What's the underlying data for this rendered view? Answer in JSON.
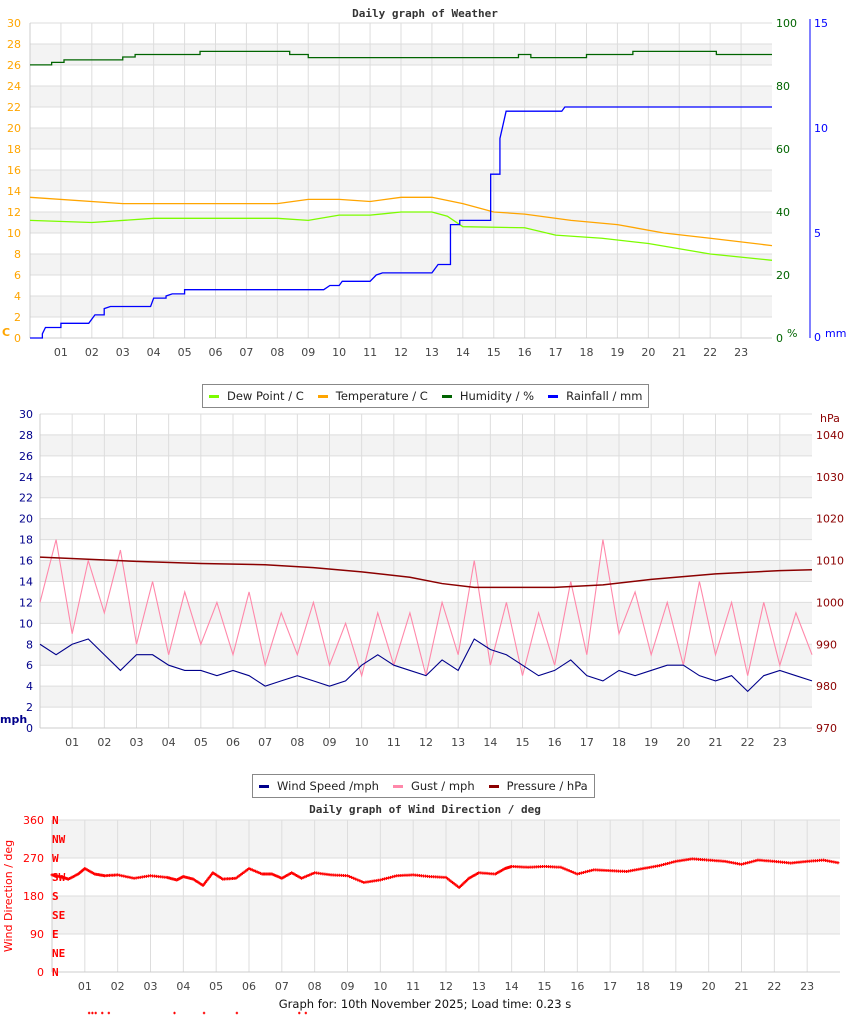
{
  "chart_data": [
    {
      "type": "line",
      "title": "Daily graph of Weather",
      "x_ticks": [
        "01",
        "02",
        "03",
        "04",
        "05",
        "06",
        "07",
        "08",
        "09",
        "10",
        "11",
        "12",
        "13",
        "14",
        "15",
        "16",
        "17",
        "18",
        "19",
        "20",
        "21",
        "22",
        "23"
      ],
      "xlim_hours": [
        0,
        24
      ],
      "axes": {
        "left": {
          "unit": "C",
          "ylim": [
            0,
            30
          ],
          "ticks": [
            0,
            2,
            4,
            6,
            8,
            10,
            12,
            14,
            16,
            18,
            20,
            22,
            24,
            26,
            28,
            30
          ],
          "color": "#ffa500"
        },
        "right1": {
          "unit": "%",
          "ylim": [
            0,
            100
          ],
          "ticks": [
            0,
            20,
            40,
            60,
            80,
            100
          ],
          "color": "#006400"
        },
        "right2": {
          "unit": "mm",
          "ylim": [
            0,
            15
          ],
          "ticks": [
            0,
            5,
            10,
            15
          ],
          "color": "#0000ff"
        }
      },
      "grid": true,
      "legend_placement": "bottom",
      "series": [
        {
          "name": "Dew Point / C",
          "color": "#7cfc00",
          "axis": "left",
          "points": [
            [
              0,
              11.2
            ],
            [
              2,
              11
            ],
            [
              4,
              11.4
            ],
            [
              8,
              11.4
            ],
            [
              9,
              11.2
            ],
            [
              10,
              11.7
            ],
            [
              11,
              11.7
            ],
            [
              12,
              12
            ],
            [
              13,
              12
            ],
            [
              13.5,
              11.6
            ],
            [
              14,
              10.6
            ],
            [
              16,
              10.5
            ],
            [
              17,
              9.8
            ],
            [
              18.5,
              9.5
            ],
            [
              20,
              9
            ],
            [
              21,
              8.5
            ],
            [
              22,
              8
            ],
            [
              24,
              7.4
            ]
          ]
        },
        {
          "name": "Temperature / C",
          "color": "#ffa500",
          "axis": "left",
          "points": [
            [
              0,
              13.4
            ],
            [
              3,
              12.8
            ],
            [
              8,
              12.8
            ],
            [
              9,
              13.2
            ],
            [
              10,
              13.2
            ],
            [
              11,
              13
            ],
            [
              12,
              13.4
            ],
            [
              13,
              13.4
            ],
            [
              14,
              12.8
            ],
            [
              15,
              12
            ],
            [
              16,
              11.8
            ],
            [
              17.5,
              11.2
            ],
            [
              19,
              10.8
            ],
            [
              20.5,
              10
            ],
            [
              22,
              9.5
            ],
            [
              24,
              8.8
            ]
          ]
        },
        {
          "name": "Humidity / %",
          "color": "#006400",
          "axis": "right1",
          "step": true,
          "points": [
            [
              0,
              86.7
            ],
            [
              0.7,
              87.5
            ],
            [
              1.1,
              88.3
            ],
            [
              3,
              89.2
            ],
            [
              3.4,
              90
            ],
            [
              5.3,
              90
            ],
            [
              5.5,
              91
            ],
            [
              8,
              91
            ],
            [
              8.4,
              90
            ],
            [
              15.8,
              90
            ],
            [
              16.2,
              89
            ],
            [
              17.5,
              89
            ],
            [
              18,
              90
            ],
            [
              19.2,
              90
            ],
            [
              19.5,
              91
            ],
            [
              21,
              91
            ],
            [
              22,
              91
            ],
            [
              22.2,
              90
            ],
            [
              24,
              90
            ],
            [
              9,
              89
            ],
            [
              10,
              89
            ]
          ]
        },
        {
          "name": "Rainfall / mm",
          "color": "#0000ff",
          "axis": "right2",
          "points": [
            [
              0,
              0
            ],
            [
              0.4,
              0.2
            ],
            [
              0.5,
              0.5
            ],
            [
              1,
              0.7
            ],
            [
              1.9,
              0.7
            ],
            [
              2.1,
              1.1
            ],
            [
              2.4,
              1.4
            ],
            [
              2.6,
              1.5
            ],
            [
              3.9,
              1.5
            ],
            [
              4,
              1.9
            ],
            [
              4.4,
              2
            ],
            [
              4.6,
              2.1
            ],
            [
              5,
              2.3
            ],
            [
              9.5,
              2.3
            ],
            [
              9.7,
              2.5
            ],
            [
              10,
              2.5
            ],
            [
              10.1,
              2.7
            ],
            [
              11,
              2.7
            ],
            [
              11.2,
              3
            ],
            [
              11.4,
              3.1
            ],
            [
              13,
              3.1
            ],
            [
              13.2,
              3.5
            ],
            [
              13.6,
              5.4
            ],
            [
              13.9,
              5.6
            ],
            [
              14.5,
              5.6
            ],
            [
              14.9,
              7.8
            ],
            [
              15.2,
              9.5
            ],
            [
              15.4,
              10.8
            ],
            [
              17.2,
              10.8
            ],
            [
              17.3,
              11
            ],
            [
              24,
              11
            ]
          ]
        }
      ]
    },
    {
      "type": "line",
      "title": "",
      "x_ticks": [
        "01",
        "02",
        "03",
        "04",
        "05",
        "06",
        "07",
        "08",
        "09",
        "10",
        "11",
        "12",
        "13",
        "14",
        "15",
        "16",
        "17",
        "18",
        "19",
        "20",
        "21",
        "22",
        "23"
      ],
      "xlim_hours": [
        0,
        24
      ],
      "axes": {
        "left": {
          "unit": "mph",
          "ylim": [
            0,
            30
          ],
          "ticks": [
            0,
            2,
            4,
            6,
            8,
            10,
            12,
            14,
            16,
            18,
            20,
            22,
            24,
            26,
            28,
            30
          ],
          "color": "#00008b"
        },
        "right": {
          "unit": "hPa",
          "ylim": [
            970,
            1045
          ],
          "ticks": [
            970,
            980,
            990,
            1000,
            1010,
            1020,
            1030,
            1040
          ],
          "color": "#8b0000"
        }
      },
      "grid": true,
      "legend_placement": "bottom",
      "hours": [
        0,
        0.5,
        1,
        1.5,
        2,
        2.5,
        3,
        3.5,
        4,
        4.5,
        5,
        5.5,
        6,
        6.5,
        7,
        7.5,
        8,
        8.5,
        9,
        9.5,
        10,
        10.5,
        11,
        11.5,
        12,
        12.5,
        13,
        13.5,
        14,
        14.5,
        15,
        15.5,
        16,
        16.5,
        17,
        17.5,
        18,
        18.5,
        19,
        19.5,
        20,
        20.5,
        21,
        21.5,
        22,
        22.5,
        23,
        23.5,
        24
      ],
      "series": [
        {
          "name": "Gust / mph",
          "color": "#ff88aa",
          "axis": "left",
          "values": [
            12,
            18,
            9,
            16,
            11,
            17,
            8,
            14,
            7,
            13,
            8,
            12,
            7,
            13,
            6,
            11,
            7,
            12,
            6,
            10,
            5,
            11,
            6,
            11,
            5,
            12,
            7,
            16,
            6,
            12,
            5,
            11,
            6,
            14,
            7,
            18,
            9,
            13,
            7,
            12,
            6,
            14,
            7,
            12,
            5,
            12,
            6,
            11,
            7
          ]
        },
        {
          "name": "Wind Speed /mph",
          "color": "#00008b",
          "axis": "left",
          "values": [
            8,
            7,
            8,
            8.5,
            7,
            5.5,
            7,
            7,
            6,
            5.5,
            5.5,
            5,
            5.5,
            5,
            4,
            4.5,
            5,
            4.5,
            4,
            4.5,
            6,
            7,
            6,
            5.5,
            5,
            6.5,
            5.5,
            8.5,
            7.5,
            7,
            6,
            5,
            5.5,
            6.5,
            5,
            4.5,
            5.5,
            5,
            5.5,
            6,
            6,
            5,
            4.5,
            5,
            3.5,
            5,
            5.5,
            5,
            4.5
          ]
        },
        {
          "name": "Pressure / hPa",
          "color": "#8b0000",
          "axis": "right",
          "points": [
            [
              0,
              1010.8
            ],
            [
              3,
              1009.8
            ],
            [
              5,
              1009.3
            ],
            [
              7,
              1009
            ],
            [
              8.5,
              1008.3
            ],
            [
              10,
              1007.3
            ],
            [
              11.5,
              1006
            ],
            [
              12.5,
              1004.5
            ],
            [
              13.5,
              1003.6
            ],
            [
              16,
              1003.6
            ],
            [
              17.5,
              1004.2
            ],
            [
              19,
              1005.5
            ],
            [
              21,
              1006.8
            ],
            [
              23,
              1007.6
            ],
            [
              24,
              1007.8
            ]
          ]
        }
      ]
    },
    {
      "type": "scatter",
      "title": "Daily graph of Wind Direction / deg",
      "ylabel": "Wind Direction / deg",
      "x_ticks": [
        "01",
        "02",
        "03",
        "04",
        "05",
        "06",
        "07",
        "08",
        "09",
        "10",
        "11",
        "12",
        "13",
        "14",
        "15",
        "16",
        "17",
        "18",
        "19",
        "20",
        "21",
        "22",
        "23"
      ],
      "xlim_hours": [
        0,
        24
      ],
      "ylim": [
        0,
        360
      ],
      "y_ticks": [
        0,
        90,
        180,
        270,
        360
      ],
      "compass_labels": [
        "N",
        "NE",
        "E",
        "SE",
        "S",
        "SW",
        "W",
        "NW",
        "N"
      ],
      "grid": true,
      "color": "#ff0000",
      "points": [
        [
          0,
          230
        ],
        [
          0.3,
          225
        ],
        [
          0.5,
          220
        ],
        [
          0.8,
          232
        ],
        [
          1,
          245
        ],
        [
          1.3,
          232
        ],
        [
          1.6,
          228
        ],
        [
          2,
          230
        ],
        [
          2.5,
          222
        ],
        [
          3,
          228
        ],
        [
          3.5,
          224
        ],
        [
          3.8,
          218
        ],
        [
          4,
          226
        ],
        [
          4.3,
          220
        ],
        [
          4.6,
          205
        ],
        [
          4.9,
          235
        ],
        [
          5.2,
          220
        ],
        [
          5.6,
          222
        ],
        [
          6,
          245
        ],
        [
          6.4,
          232
        ],
        [
          6.7,
          232
        ],
        [
          7,
          222
        ],
        [
          7.3,
          235
        ],
        [
          7.6,
          222
        ],
        [
          8,
          235
        ],
        [
          8.5,
          230
        ],
        [
          9,
          228
        ],
        [
          9.5,
          212
        ],
        [
          10,
          218
        ],
        [
          10.5,
          228
        ],
        [
          11,
          230
        ],
        [
          11.5,
          226
        ],
        [
          12,
          224
        ],
        [
          12.4,
          200
        ],
        [
          12.7,
          222
        ],
        [
          13,
          235
        ],
        [
          13.5,
          232
        ],
        [
          13.8,
          245
        ],
        [
          14,
          250
        ],
        [
          14.5,
          248
        ],
        [
          15,
          250
        ],
        [
          15.5,
          248
        ],
        [
          16,
          232
        ],
        [
          16.5,
          242
        ],
        [
          17,
          240
        ],
        [
          17.5,
          238
        ],
        [
          18,
          245
        ],
        [
          18.5,
          252
        ],
        [
          19,
          262
        ],
        [
          19.5,
          268
        ],
        [
          20,
          265
        ],
        [
          20.5,
          262
        ],
        [
          21,
          255
        ],
        [
          21.5,
          265
        ],
        [
          22,
          262
        ],
        [
          22.5,
          258
        ],
        [
          23,
          262
        ],
        [
          23.5,
          265
        ],
        [
          24,
          258
        ]
      ]
    }
  ],
  "footer": "Graph for: 10th November 2025; Load time: 0.23 s"
}
